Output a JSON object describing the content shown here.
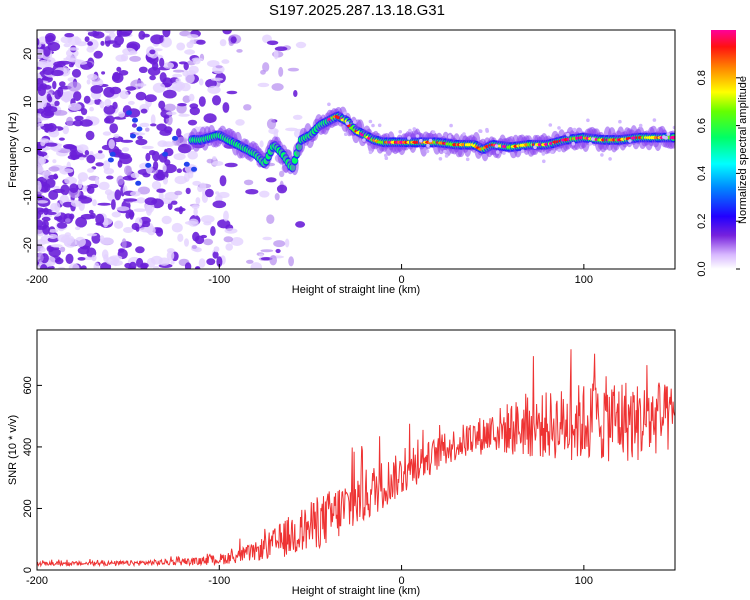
{
  "title": "S197.2025.287.13.18.G31",
  "chart_data": [
    {
      "type": "heatmap",
      "xlabel": "Height of straight line (km)",
      "ylabel": "Frequency (Hz)",
      "xlim": [
        -200,
        150
      ],
      "ylim": [
        -25,
        25
      ],
      "xticks": [
        -200,
        -100,
        0,
        100
      ],
      "yticks": [
        -20,
        -10,
        0,
        10,
        20
      ],
      "ridge": {
        "x": [
          -200,
          -150,
          -110,
          -100,
          -90,
          -80,
          -75,
          -70,
          -65,
          -60,
          -55,
          -50,
          -45,
          -40,
          -35,
          -30,
          -25,
          -20,
          -15,
          -10,
          -5,
          0,
          10,
          20,
          30,
          40,
          45,
          50,
          60,
          70,
          80,
          90,
          100,
          110,
          120,
          130,
          140,
          150
        ],
        "freq": [
          0,
          2,
          2,
          3,
          1,
          -1,
          -3,
          1,
          -1,
          -4,
          2,
          3,
          5,
          6,
          7,
          6,
          4,
          3,
          2,
          1.5,
          1.5,
          1.5,
          1.5,
          1.5,
          1,
          1,
          0,
          1,
          0.5,
          1,
          1,
          2,
          2.5,
          2,
          2,
          2.5,
          2.5,
          2.5
        ]
      },
      "noise_region_x": [
        -200,
        -70
      ],
      "colorbar": {
        "label": "Normalized spectral amplitude",
        "range": [
          0,
          1
        ],
        "ticks": [
          "0.0",
          "0.2",
          "0.4",
          "0.6",
          "0.8"
        ],
        "colormap": "rainbow"
      }
    },
    {
      "type": "line",
      "xlabel": "Height of straight line (km)",
      "ylabel": "SNR (10 * v/v)",
      "xlim": [
        -200,
        150
      ],
      "ylim": [
        0,
        780
      ],
      "xticks": [
        -200,
        -100,
        0,
        100
      ],
      "yticks": [
        0,
        200,
        400,
        600
      ],
      "color": "#ee3333",
      "envelope": {
        "x": [
          -200,
          -150,
          -110,
          -100,
          -90,
          -80,
          -70,
          -60,
          -50,
          -40,
          -30,
          -20,
          -10,
          0,
          10,
          20,
          30,
          40,
          50,
          60,
          80,
          100,
          110,
          120,
          130,
          140,
          150
        ],
        "mean": [
          20,
          22,
          28,
          35,
          45,
          60,
          85,
          115,
          140,
          170,
          205,
          240,
          280,
          310,
          345,
          380,
          410,
          430,
          450,
          460,
          470,
          480,
          490,
          490,
          480,
          490,
          490
        ],
        "spread": [
          6,
          8,
          12,
          18,
          22,
          30,
          50,
          70,
          80,
          90,
          95,
          90,
          80,
          70,
          60,
          55,
          55,
          60,
          70,
          90,
          110,
          130,
          140,
          140,
          130,
          120,
          110
        ]
      }
    }
  ]
}
